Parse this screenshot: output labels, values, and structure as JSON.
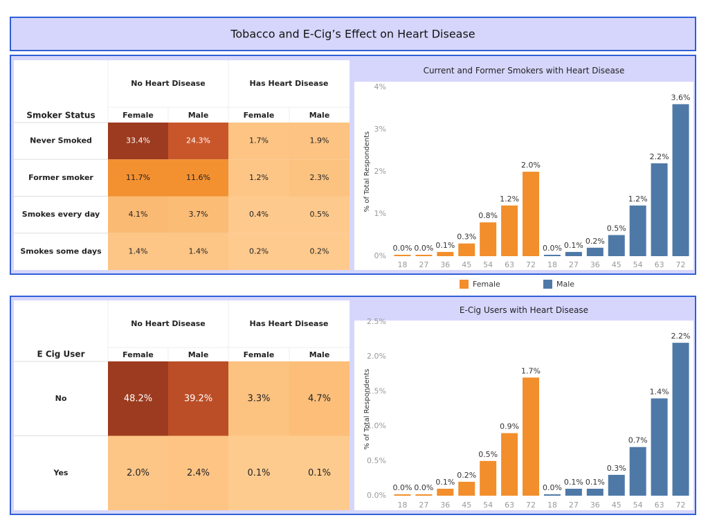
{
  "title": "Tobacco and E-Cig’s Effect on Heart Disease",
  "tables": [
    {
      "group_headers": [
        "No Heart Disease",
        "Has Heart Disease"
      ],
      "column_headers": [
        "Female",
        "Male",
        "Female",
        "Male"
      ],
      "row_header": "Smoker Status",
      "rows": [
        {
          "label": "Never Smoked",
          "cells": [
            "33.4%",
            "24.3%",
            "1.7%",
            "1.9%"
          ]
        },
        {
          "label": "Former smoker",
          "cells": [
            "11.7%",
            "11.6%",
            "1.2%",
            "2.3%"
          ]
        },
        {
          "label": "Smokes every day",
          "cells": [
            "4.1%",
            "3.7%",
            "0.4%",
            "0.5%"
          ]
        },
        {
          "label": "Smokes some days",
          "cells": [
            "1.4%",
            "1.4%",
            "0.2%",
            "0.2%"
          ]
        }
      ]
    },
    {
      "group_headers": [
        "No Heart Disease",
        "Has Heart Disease"
      ],
      "column_headers": [
        "Female",
        "Male",
        "Female",
        "Male"
      ],
      "row_header": "E Cig User",
      "rows": [
        {
          "label": "No",
          "cells": [
            "48.2%",
            "39.2%",
            "3.3%",
            "4.7%"
          ]
        },
        {
          "label": "Yes",
          "cells": [
            "2.0%",
            "2.4%",
            "0.1%",
            "0.1%"
          ]
        }
      ]
    }
  ],
  "chart_data": [
    {
      "type": "bar",
      "title": "Current and Former Smokers with Heart Disease",
      "y_label": "% of Total Respondents",
      "categories": [
        "18",
        "27",
        "36",
        "45",
        "54",
        "63",
        "72",
        "18",
        "27",
        "36",
        "45",
        "54",
        "63",
        "72"
      ],
      "series": [
        {
          "name": "Female",
          "color": "#f28e2b",
          "values": [
            0.0,
            0.0,
            0.1,
            0.3,
            0.8,
            1.2,
            2.0,
            null,
            null,
            null,
            null,
            null,
            null,
            null
          ],
          "value_labels": [
            "0.0%",
            "0.0%",
            "0.1%",
            "0.3%",
            "0.8%",
            "1.2%",
            "2.0%",
            null,
            null,
            null,
            null,
            null,
            null,
            null
          ]
        },
        {
          "name": "Male",
          "color": "#4e79a7",
          "values": [
            null,
            null,
            null,
            null,
            null,
            null,
            null,
            0.0,
            0.1,
            0.2,
            0.5,
            1.2,
            2.2,
            3.6
          ],
          "value_labels": [
            null,
            null,
            null,
            null,
            null,
            null,
            null,
            "0.0%",
            "0.1%",
            "0.2%",
            "0.5%",
            "1.2%",
            "2.2%",
            "3.6%"
          ]
        }
      ],
      "ylim": [
        0,
        4.1
      ],
      "yticks": [
        {
          "value": 0,
          "label": "0%"
        },
        {
          "value": 1,
          "label": "1%"
        },
        {
          "value": 2,
          "label": "2%"
        },
        {
          "value": 3,
          "label": "3%"
        },
        {
          "value": 4,
          "label": "4%"
        }
      ]
    },
    {
      "type": "bar",
      "title": "E-Cig Users with Heart Disease",
      "y_label": "% of Total Respondents",
      "categories": [
        "18",
        "27",
        "36",
        "45",
        "54",
        "63",
        "72",
        "18",
        "27",
        "36",
        "45",
        "54",
        "63",
        "72"
      ],
      "series": [
        {
          "name": "Female",
          "color": "#f28e2b",
          "values": [
            0.0,
            0.0,
            0.1,
            0.2,
            0.5,
            0.9,
            1.7,
            null,
            null,
            null,
            null,
            null,
            null,
            null
          ],
          "value_labels": [
            "0.0%",
            "0.0%",
            "0.1%",
            "0.2%",
            "0.5%",
            "0.9%",
            "1.7%",
            null,
            null,
            null,
            null,
            null,
            null,
            null
          ]
        },
        {
          "name": "Male",
          "color": "#4e79a7",
          "values": [
            null,
            null,
            null,
            null,
            null,
            null,
            null,
            0.0,
            0.1,
            0.1,
            0.3,
            0.7,
            1.4,
            2.2
          ],
          "value_labels": [
            null,
            null,
            null,
            null,
            null,
            null,
            null,
            "0.0%",
            "0.1%",
            "0.1%",
            "0.3%",
            "0.7%",
            "1.4%",
            "2.2%"
          ]
        }
      ],
      "ylim": [
        0,
        2.55
      ],
      "yticks": [
        {
          "value": 0,
          "label": "0.0%"
        },
        {
          "value": 0.5,
          "label": "0.5%"
        },
        {
          "value": 1,
          "label": "1.0%"
        },
        {
          "value": 1.5,
          "label": "1.5%"
        },
        {
          "value": 2,
          "label": "2.0%"
        },
        {
          "value": 2.5,
          "label": "2.5%"
        }
      ]
    }
  ]
}
